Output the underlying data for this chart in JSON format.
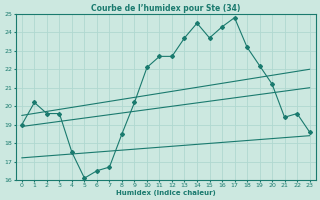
{
  "title": "Courbe de l’humidex pour Ste (34)",
  "xlabel": "Humidex (Indice chaleur)",
  "xlim": [
    -0.5,
    23.5
  ],
  "ylim": [
    16,
    25
  ],
  "yticks": [
    16,
    17,
    18,
    19,
    20,
    21,
    22,
    23,
    24,
    25
  ],
  "xticks": [
    0,
    1,
    2,
    3,
    4,
    5,
    6,
    7,
    8,
    9,
    10,
    11,
    12,
    13,
    14,
    15,
    16,
    17,
    18,
    19,
    20,
    21,
    22,
    23
  ],
  "bg_color": "#cce8e0",
  "line_color": "#1a7a6e",
  "grid_color": "#b0d8d0",
  "main_line": {
    "x": [
      0,
      1,
      2,
      3,
      4,
      5,
      6,
      7,
      8,
      9,
      10,
      11,
      12,
      13,
      14,
      15,
      16,
      17,
      18,
      19,
      20,
      21,
      22,
      23
    ],
    "y": [
      19.0,
      20.2,
      19.6,
      19.6,
      17.5,
      16.1,
      16.5,
      16.7,
      18.5,
      20.2,
      22.1,
      22.7,
      22.7,
      23.7,
      24.5,
      23.7,
      24.3,
      24.8,
      23.2,
      22.2,
      21.2,
      19.4,
      19.6,
      18.6
    ]
  },
  "trend_upper": {
    "x": [
      0,
      23
    ],
    "y": [
      19.5,
      22.0
    ]
  },
  "trend_mid": {
    "x": [
      0,
      23
    ],
    "y": [
      18.9,
      21.0
    ]
  },
  "trend_lower": {
    "x": [
      0,
      23
    ],
    "y": [
      17.2,
      18.4
    ]
  }
}
